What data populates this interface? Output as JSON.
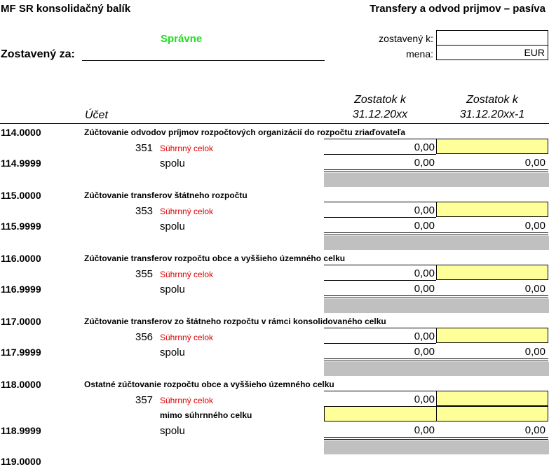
{
  "header": {
    "left_title": "MF SR konsolidačný balík",
    "right_title": "Transfery a odvod prijmov – pasíva"
  },
  "status": {
    "correct_label": "Správne",
    "correct_color": "#22dd22"
  },
  "form": {
    "zostaveny_za_label": "Zostavený za:",
    "zostaveny_k_label": "zostavený k:",
    "zostaveny_k_value": "",
    "mena_label": "mena:",
    "mena_value": "EUR"
  },
  "columns": {
    "ucet": "Účet",
    "col1_line1": "Zostatok k",
    "col1_line2": "31.12.20xx",
    "col2_line1": "Zostatok k",
    "col2_line2": "31.12.20xx-1"
  },
  "sections": [
    {
      "code": "114.0000",
      "title": "Zúčtovanie odvodov príjmov rozpočtových organizácií do rozpočtu zriaďovateľa",
      "sub": "351",
      "sub_label": "Súhrnný celok",
      "sub_value": "0,00",
      "total_code": "114.9999",
      "total_label": "spolu",
      "total_v1": "0,00",
      "total_v2": "0,00"
    },
    {
      "code": "115.0000",
      "title": "Zúčtovanie transferov štátneho rozpočtu",
      "sub": "353",
      "sub_label": "Súhrnný celok",
      "sub_value": "0,00",
      "total_code": "115.9999",
      "total_label": "spolu",
      "total_v1": "0,00",
      "total_v2": "0,00"
    },
    {
      "code": "116.0000",
      "title": "Zúčtovanie transferov rozpočtu obce a vyššieho územného celku",
      "sub": "355",
      "sub_label": "Súhrnný celok",
      "sub_value": "0,00",
      "total_code": "116.9999",
      "total_label": "spolu",
      "total_v1": "0,00",
      "total_v2": "0,00"
    },
    {
      "code": "117.0000",
      "title": "Zúčtovanie transferov zo štátneho rozpočtu v rámci konsolidovaného celku",
      "sub": "356",
      "sub_label": "Súhrnný celok",
      "sub_value": "0,00",
      "total_code": "117.9999",
      "total_label": "spolu",
      "total_v1": "0,00",
      "total_v2": "0,00"
    },
    {
      "code": "118.0000",
      "title": "Ostatné zúčtovanie rozpočtu obce a vyššieho územného celku",
      "sub": "357",
      "sub_label": "Súhrnný celok",
      "sub_value": "0,00",
      "extra_label": "mimo súhrnného celku",
      "total_code": "118.9999",
      "total_label": "spolu",
      "total_v1": "0,00",
      "total_v2": "0,00"
    }
  ],
  "partial_next_code": "119.0000"
}
